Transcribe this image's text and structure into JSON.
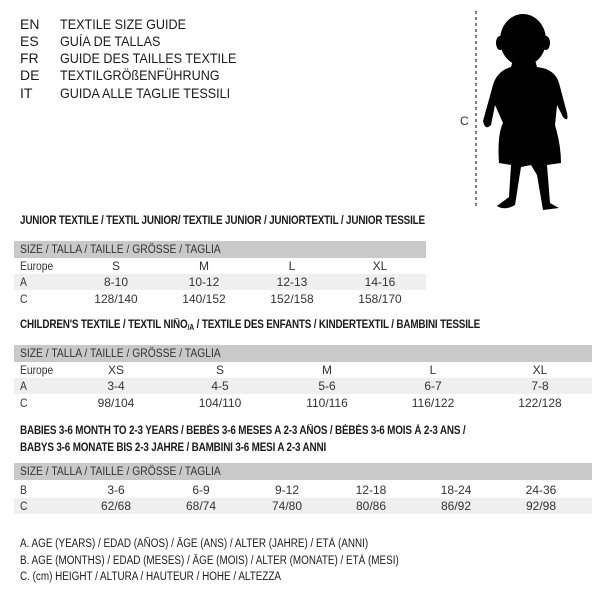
{
  "languages": [
    {
      "code": "EN",
      "text": "TEXTILE SIZE GUIDE"
    },
    {
      "code": "ES",
      "text": "GUÍA DE TALLAS"
    },
    {
      "code": "FR",
      "text": "GUIDE DES TAILLES TEXTILE"
    },
    {
      "code": "DE",
      "text": "TEXTILGRÖßENFÜHRUNG"
    },
    {
      "code": "IT",
      "text": "GUIDA ALLE TAGLIE TESSILI"
    }
  ],
  "figure": {
    "measure_label": "C",
    "icon": "baby-silhouette"
  },
  "tables": [
    {
      "title_lines": [
        "JUNIOR TEXTILE / TEXTIL JUNIOR/ TEXTILE JUNIOR / JUNIORTEXTIL / JUNIOR TESSILE"
      ],
      "header": "SIZE / TALLA / TAILLE / GRÖSSE / TAGLIA",
      "rows": [
        {
          "label": "Europe",
          "cells": [
            "S",
            "M",
            "L",
            "XL"
          ]
        },
        {
          "label": "A",
          "cells": [
            "8-10",
            "10-12",
            "12-13",
            "14-16"
          ]
        },
        {
          "label": "C",
          "cells": [
            "128/140",
            "140/152",
            "152/158",
            "158/170"
          ]
        }
      ]
    },
    {
      "title_lines": [
        "CHILDREN'S TEXTILE / TEXTIL NIÑO",
        "/A",
        " / TEXTILE DES ENFANTS / KINDERTEXTIL / BAMBINI TESSILE"
      ],
      "header": "SIZE / TALLA / TAILLE / GRÖSSE / TAGLIA",
      "rows": [
        {
          "label": "Europe",
          "cells": [
            "XS",
            "S",
            "M",
            "L",
            "XL"
          ]
        },
        {
          "label": "A",
          "cells": [
            "3-4",
            "4-5",
            "5-6",
            "6-7",
            "7-8"
          ]
        },
        {
          "label": "C",
          "cells": [
            "98/104",
            "104/110",
            "110/116",
            "116/122",
            "122/128"
          ]
        }
      ]
    },
    {
      "title_lines": [
        "BABIES 3-6 MONTH TO 2-3 YEARS / BEBÉS 3-6 MESES A 2-3 AÑOS / BÉBÉS 3-6 MOIS À 2-3 ANS /",
        "BABYS 3-6 MONATE BIS 2-3 JAHRE / BAMBINI 3-6 MESI A 2-3 ANNI"
      ],
      "header": "SIZE / TALLA / TAILLE / GRÖSSE / TAGLIA",
      "rows": [
        {
          "label": "B",
          "cells": [
            "3-6",
            "6-9",
            "9-12",
            "12-18",
            "18-24",
            "24-36"
          ]
        },
        {
          "label": "C",
          "cells": [
            "62/68",
            "68/74",
            "74/80",
            "80/86",
            "86/92",
            "92/98"
          ]
        }
      ]
    }
  ],
  "legend": [
    "A. AGE (YEARS) / EDAD (AÑOS) / ÂGE (ANS) / ALTER (JAHRE) / ETÀ (ANNI)",
    "B. AGE (MONTHS) / EDAD (MESES) / ÂGE (MOIS) / ALTER (MONATE) / ETÀ (MESI)",
    "C. (cm) HEIGHT / ALTURA / HAUTEUR / HÖHE / ALTEZZA"
  ],
  "colors": {
    "header_bg": "#c9c9c9",
    "row_shade": "#efefef",
    "text": "#1a1a1a"
  }
}
